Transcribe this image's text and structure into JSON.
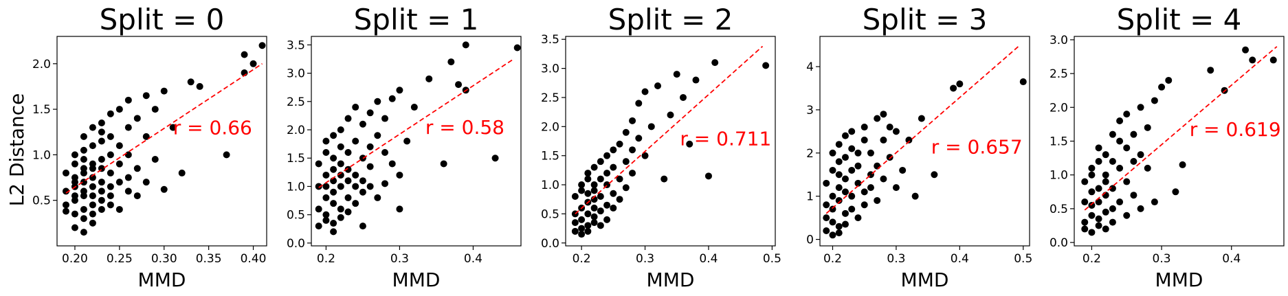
{
  "figure": {
    "ylabel": "L2 Distance"
  },
  "chart_data": [
    {
      "type": "scatter",
      "title": "Split = 0",
      "xlabel": "MMD",
      "ylabel": "L2 Distance",
      "xlim": [
        0.18,
        0.415
      ],
      "ylim": [
        0.0,
        2.3
      ],
      "xticks": [
        0.2,
        0.25,
        0.3,
        0.35,
        0.4
      ],
      "xtick_labels": [
        "0.20",
        "0.25",
        "0.30",
        "0.35",
        "0.40"
      ],
      "yticks": [
        0.5,
        1.0,
        1.5,
        2.0
      ],
      "ytick_labels": [
        "0.5",
        "1.0",
        "1.5",
        "2.0"
      ],
      "annotation": {
        "text": "r = 0.66",
        "x": 0.31,
        "y": 1.3
      },
      "fit_line": {
        "x": [
          0.19,
          0.41
        ],
        "y": [
          0.58,
          2.0
        ],
        "color": "#ff0000"
      },
      "point_color": "#000000",
      "series": [
        {
          "x": [
            0.19,
            0.19,
            0.19,
            0.19,
            0.2,
            0.2,
            0.2,
            0.2,
            0.2,
            0.2,
            0.2,
            0.2,
            0.2,
            0.21,
            0.21,
            0.21,
            0.21,
            0.21,
            0.21,
            0.21,
            0.21,
            0.21,
            0.21,
            0.21,
            0.22,
            0.22,
            0.22,
            0.22,
            0.22,
            0.22,
            0.22,
            0.22,
            0.22,
            0.22,
            0.23,
            0.23,
            0.23,
            0.23,
            0.23,
            0.23,
            0.23,
            0.23,
            0.23,
            0.24,
            0.24,
            0.24,
            0.24,
            0.24,
            0.24,
            0.24,
            0.25,
            0.25,
            0.25,
            0.25,
            0.25,
            0.26,
            0.26,
            0.26,
            0.26,
            0.26,
            0.27,
            0.27,
            0.27,
            0.28,
            0.28,
            0.28,
            0.29,
            0.29,
            0.3,
            0.3,
            0.31,
            0.32,
            0.33,
            0.34,
            0.37,
            0.39,
            0.39,
            0.4,
            0.41
          ],
          "y": [
            0.6,
            0.45,
            0.8,
            0.38,
            0.55,
            0.7,
            0.9,
            0.35,
            0.65,
            1.0,
            0.2,
            0.75,
            0.5,
            0.85,
            0.4,
            0.6,
            1.05,
            0.3,
            0.7,
            0.95,
            0.15,
            0.55,
            1.2,
            0.8,
            0.65,
            0.45,
            1.1,
            0.9,
            0.35,
            0.75,
            1.3,
            0.55,
            0.85,
            0.25,
            0.6,
            0.95,
            1.15,
            0.4,
            0.7,
            1.35,
            0.5,
            0.85,
            1.25,
            0.65,
            1.0,
            0.45,
            1.45,
            0.8,
            1.2,
            0.55,
            0.7,
            1.1,
            1.5,
            0.9,
            0.4,
            0.75,
            1.3,
            1.6,
            0.6,
            1.0,
            0.85,
            1.4,
            0.55,
            1.2,
            0.7,
            1.65,
            0.95,
            1.5,
            1.7,
            0.62,
            1.3,
            0.8,
            1.8,
            1.75,
            1.0,
            1.9,
            2.1,
            2.0,
            2.2
          ]
        }
      ]
    },
    {
      "type": "scatter",
      "title": "Split = 1",
      "xlabel": "MMD",
      "ylabel": "",
      "xlim": [
        0.18,
        0.465
      ],
      "ylim": [
        -0.05,
        3.65
      ],
      "xticks": [
        0.2,
        0.3,
        0.4
      ],
      "xtick_labels": [
        "0.2",
        "0.3",
        "0.4"
      ],
      "yticks": [
        0.0,
        0.5,
        1.0,
        1.5,
        2.0,
        2.5,
        3.0,
        3.5
      ],
      "ytick_labels": [
        "0.0",
        "0.5",
        "1.0",
        "1.5",
        "2.0",
        "2.5",
        "3.0",
        "3.5"
      ],
      "annotation": {
        "text": "r = 0.58",
        "x": 0.335,
        "y": 2.05
      },
      "fit_line": {
        "x": [
          0.19,
          0.455
        ],
        "y": [
          0.98,
          3.25
        ],
        "color": "#ff0000"
      },
      "point_color": "#000000",
      "series": [
        {
          "x": [
            0.19,
            0.19,
            0.19,
            0.19,
            0.2,
            0.2,
            0.2,
            0.2,
            0.2,
            0.2,
            0.2,
            0.21,
            0.21,
            0.21,
            0.21,
            0.21,
            0.21,
            0.21,
            0.21,
            0.22,
            0.22,
            0.22,
            0.22,
            0.22,
            0.22,
            0.22,
            0.23,
            0.23,
            0.23,
            0.23,
            0.23,
            0.23,
            0.24,
            0.24,
            0.24,
            0.24,
            0.24,
            0.25,
            0.25,
            0.25,
            0.25,
            0.25,
            0.26,
            0.26,
            0.26,
            0.26,
            0.27,
            0.27,
            0.27,
            0.28,
            0.28,
            0.28,
            0.29,
            0.29,
            0.3,
            0.3,
            0.3,
            0.31,
            0.32,
            0.34,
            0.36,
            0.37,
            0.38,
            0.39,
            0.39,
            0.43,
            0.46
          ],
          "y": [
            1.0,
            0.6,
            1.4,
            0.3,
            1.2,
            0.8,
            1.6,
            0.5,
            1.0,
            0.4,
            1.8,
            1.3,
            0.7,
            1.1,
            0.2,
            1.5,
            0.9,
            1.9,
            0.35,
            1.2,
            0.6,
            1.7,
            1.0,
            0.45,
            2.0,
            1.4,
            0.8,
            1.6,
            1.1,
            2.2,
            0.55,
            1.3,
            1.0,
            1.8,
            0.7,
            2.4,
            1.2,
            1.5,
            0.9,
            2.1,
            1.1,
            0.3,
            1.7,
            2.3,
            1.0,
            1.35,
            1.9,
            0.8,
            2.5,
            1.6,
            1.05,
            2.2,
            1.4,
            2.55,
            1.2,
            2.7,
            0.6,
            1.8,
            2.4,
            2.9,
            1.4,
            3.2,
            2.8,
            3.5,
            2.7,
            1.5,
            3.45
          ]
        }
      ]
    },
    {
      "type": "scatter",
      "title": "Split = 2",
      "xlabel": "MMD",
      "ylabel": "",
      "xlim": [
        0.175,
        0.505
      ],
      "ylim": [
        -0.05,
        3.55
      ],
      "xticks": [
        0.2,
        0.3,
        0.4,
        0.5
      ],
      "xtick_labels": [
        "0.2",
        "0.3",
        "0.4",
        "0.5"
      ],
      "yticks": [
        0.0,
        0.5,
        1.0,
        1.5,
        2.0,
        2.5,
        3.0,
        3.5
      ],
      "ytick_labels": [
        "0.0",
        "0.5",
        "1.0",
        "1.5",
        "2.0",
        "2.5",
        "3.0",
        "3.5"
      ],
      "annotation": {
        "text": "r = 0.711",
        "x": 0.355,
        "y": 1.8
      },
      "fit_line": {
        "x": [
          0.19,
          0.485
        ],
        "y": [
          0.5,
          3.38
        ],
        "color": "#ff0000"
      },
      "point_color": "#000000",
      "series": [
        {
          "x": [
            0.19,
            0.19,
            0.19,
            0.19,
            0.2,
            0.2,
            0.2,
            0.2,
            0.2,
            0.2,
            0.21,
            0.21,
            0.21,
            0.21,
            0.21,
            0.21,
            0.21,
            0.22,
            0.22,
            0.22,
            0.22,
            0.22,
            0.22,
            0.22,
            0.23,
            0.23,
            0.23,
            0.23,
            0.23,
            0.24,
            0.24,
            0.24,
            0.24,
            0.24,
            0.25,
            0.25,
            0.25,
            0.25,
            0.26,
            0.26,
            0.26,
            0.27,
            0.27,
            0.27,
            0.28,
            0.28,
            0.28,
            0.29,
            0.29,
            0.3,
            0.3,
            0.31,
            0.32,
            0.33,
            0.34,
            0.35,
            0.36,
            0.37,
            0.38,
            0.4,
            0.41,
            0.49
          ],
          "y": [
            0.5,
            0.2,
            0.8,
            0.35,
            0.6,
            0.15,
            0.9,
            0.4,
            1.0,
            0.25,
            0.7,
            0.3,
            1.1,
            0.5,
            0.85,
            0.2,
            1.2,
            0.6,
            0.35,
            1.0,
            0.75,
            1.3,
            0.45,
            0.9,
            1.1,
            0.55,
            1.4,
            0.8,
            0.3,
            1.0,
            1.5,
            0.65,
            1.2,
            0.4,
            1.3,
            0.85,
            1.6,
            0.6,
            1.1,
            1.7,
            0.75,
            1.4,
            1.9,
            0.95,
            1.6,
            2.1,
            1.2,
            1.8,
            2.4,
            1.5,
            2.6,
            2.0,
            2.7,
            1.1,
            2.2,
            2.9,
            2.5,
            1.7,
            2.8,
            1.15,
            3.1,
            3.05
          ]
        }
      ]
    },
    {
      "type": "scatter",
      "title": "Split = 3",
      "xlabel": "MMD",
      "ylabel": "",
      "xlim": [
        0.18,
        0.51
      ],
      "ylim": [
        -0.15,
        4.7
      ],
      "xticks": [
        0.2,
        0.3,
        0.4,
        0.5
      ],
      "xtick_labels": [
        "0.2",
        "0.3",
        "0.4",
        "0.5"
      ],
      "yticks": [
        0,
        1,
        2,
        3,
        4
      ],
      "ytick_labels": [
        "0",
        "1",
        "2",
        "3",
        "4"
      ],
      "annotation": {
        "text": "r = 0.657",
        "x": 0.355,
        "y": 2.15
      },
      "fit_line": {
        "x": [
          0.19,
          0.495
        ],
        "y": [
          0.6,
          4.5
        ],
        "color": "#ff0000"
      },
      "point_color": "#000000",
      "series": [
        {
          "x": [
            0.19,
            0.19,
            0.19,
            0.19,
            0.2,
            0.2,
            0.2,
            0.2,
            0.2,
            0.2,
            0.21,
            0.21,
            0.21,
            0.21,
            0.21,
            0.21,
            0.21,
            0.22,
            0.22,
            0.22,
            0.22,
            0.22,
            0.22,
            0.23,
            0.23,
            0.23,
            0.23,
            0.23,
            0.24,
            0.24,
            0.24,
            0.24,
            0.25,
            0.25,
            0.25,
            0.25,
            0.26,
            0.26,
            0.26,
            0.27,
            0.27,
            0.27,
            0.28,
            0.28,
            0.28,
            0.29,
            0.29,
            0.3,
            0.3,
            0.31,
            0.32,
            0.33,
            0.34,
            0.36,
            0.39,
            0.4,
            0.5
          ],
          "y": [
            0.8,
            0.2,
            1.3,
            0.5,
            1.0,
            0.1,
            1.6,
            0.4,
            2.0,
            0.7,
            1.2,
            0.3,
            1.8,
            0.9,
            2.2,
            0.15,
            1.5,
            1.1,
            0.6,
            2.4,
            1.4,
            0.35,
            1.9,
            1.0,
            2.1,
            0.7,
            1.6,
            2.5,
            1.3,
            0.5,
            2.0,
            1.7,
            1.1,
            2.3,
            0.8,
            2.6,
            1.5,
            2.0,
            1.2,
            2.8,
            1.7,
            0.9,
            2.3,
            1.4,
            2.9,
            1.9,
            2.6,
            1.2,
            2.5,
            1.6,
            2.3,
            1.0,
            2.8,
            1.5,
            3.5,
            3.6,
            3.65
          ]
        }
      ]
    },
    {
      "type": "scatter",
      "title": "Split = 4",
      "xlabel": "MMD",
      "ylabel": "",
      "xlim": [
        0.175,
        0.475
      ],
      "ylim": [
        -0.05,
        3.05
      ],
      "xticks": [
        0.2,
        0.3,
        0.4
      ],
      "xtick_labels": [
        "0.2",
        "0.3",
        "0.4"
      ],
      "yticks": [
        0.0,
        0.5,
        1.0,
        1.5,
        2.0,
        2.5,
        3.0
      ],
      "ytick_labels": [
        "0.0",
        "0.5",
        "1.0",
        "1.5",
        "2.0",
        "2.5",
        "3.0"
      ],
      "annotation": {
        "text": "r = 0.619",
        "x": 0.34,
        "y": 1.68
      },
      "fit_line": {
        "x": [
          0.19,
          0.465
        ],
        "y": [
          0.48,
          2.9
        ],
        "color": "#ff0000"
      },
      "point_color": "#000000",
      "series": [
        {
          "x": [
            0.19,
            0.19,
            0.19,
            0.19,
            0.2,
            0.2,
            0.2,
            0.2,
            0.2,
            0.2,
            0.21,
            0.21,
            0.21,
            0.21,
            0.21,
            0.21,
            0.22,
            0.22,
            0.22,
            0.22,
            0.22,
            0.22,
            0.23,
            0.23,
            0.23,
            0.23,
            0.23,
            0.24,
            0.24,
            0.24,
            0.24,
            0.25,
            0.25,
            0.25,
            0.25,
            0.26,
            0.26,
            0.26,
            0.27,
            0.27,
            0.27,
            0.28,
            0.28,
            0.29,
            0.29,
            0.3,
            0.31,
            0.32,
            0.33,
            0.37,
            0.39,
            0.42,
            0.43,
            0.46
          ],
          "y": [
            0.6,
            0.3,
            0.9,
            0.2,
            0.75,
            0.4,
            1.1,
            0.15,
            0.55,
            1.0,
            0.8,
            0.35,
            1.2,
            0.6,
            0.25,
            1.4,
            0.9,
            0.45,
            1.3,
            0.7,
            0.2,
            1.0,
            1.2,
            0.5,
            1.6,
            0.8,
            0.3,
            1.1,
            1.5,
            0.6,
            1.8,
            0.9,
            1.4,
            0.4,
            1.9,
            1.2,
            0.7,
            1.6,
            1.3,
            0.5,
            2.0,
            1.1,
            1.7,
            2.1,
            0.6,
            2.3,
            2.4,
            0.75,
            1.15,
            2.55,
            2.25,
            2.85,
            2.7,
            2.7
          ]
        }
      ]
    }
  ]
}
